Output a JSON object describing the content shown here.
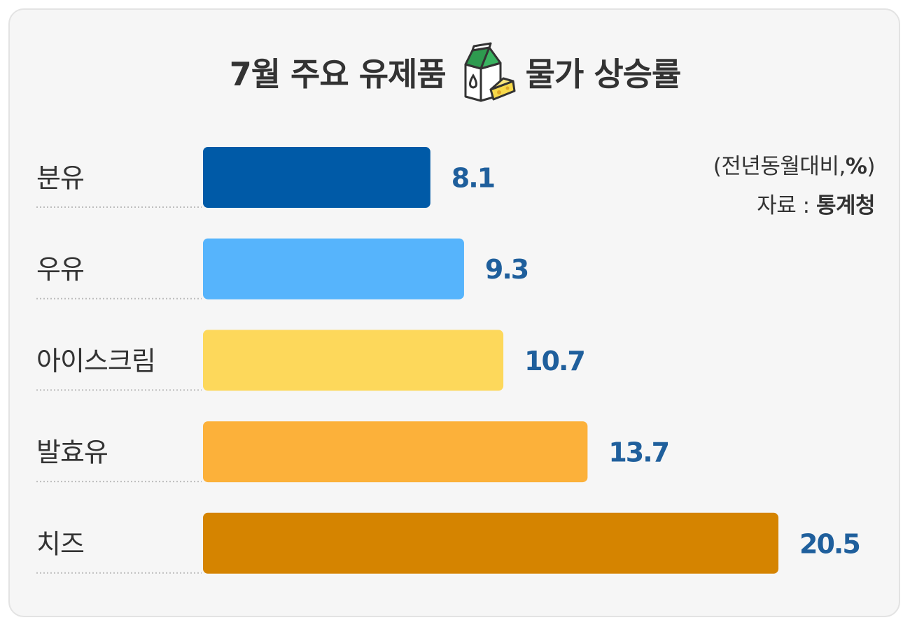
{
  "title": {
    "before_icon": "7월 주요 유제품",
    "after_icon": "물가 상승률",
    "icon": "milk-carton-cheese-icon"
  },
  "notes": {
    "unit_prefix": "(전년동월대비,",
    "unit_bold": "%",
    "unit_suffix": ")",
    "source_label": "자료 : ",
    "source_name": "통계청"
  },
  "colors": {
    "background": "#f6f6f6",
    "value_text": "#1f5f9c",
    "bars": [
      "#005aa7",
      "#56b4fc",
      "#fdd85b",
      "#fcb13a",
      "#d58400"
    ]
  },
  "chart_data": {
    "type": "bar",
    "orientation": "horizontal",
    "categories": [
      "분유",
      "우유",
      "아이스크림",
      "발효유",
      "치즈"
    ],
    "values": [
      8.1,
      9.3,
      10.7,
      13.7,
      20.5
    ],
    "value_labels": [
      "8.1",
      "9.3",
      "10.7",
      "13.7",
      "20.5"
    ],
    "title": "7월 주요 유제품 물가 상승률",
    "unit": "(전년동월대비,%)",
    "source": "자료 : 통계청",
    "grid": false,
    "legend": "none"
  }
}
